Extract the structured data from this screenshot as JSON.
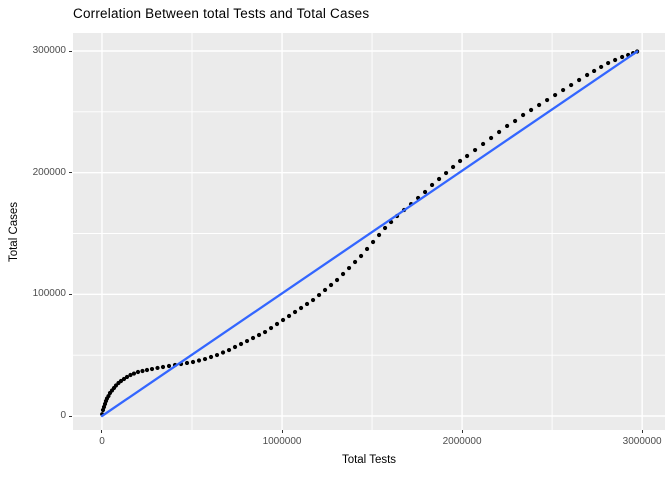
{
  "window": {
    "background": "#FFFFFF"
  },
  "chart_data": {
    "type": "scatter",
    "title": "Correlation Between total Tests and Total Cases",
    "xlabel": "Total Tests",
    "ylabel": "Total Cases",
    "panel_background": "#EBEBEB",
    "grid_color": "#FFFFFF",
    "tick_color": "#333333",
    "tick_label_color": "#4D4D4D",
    "legend": "none",
    "x_domain": [
      -161000,
      3127000
    ],
    "y_domain": [
      -11500,
      314800
    ],
    "x_ticks": {
      "values": [
        0,
        1000000,
        2000000,
        3000000
      ],
      "labels": [
        "0",
        "1000000",
        "2000000",
        "3000000"
      ]
    },
    "y_ticks": {
      "values": [
        0,
        100000,
        200000,
        300000
      ],
      "labels": [
        "0",
        "100000",
        "200000",
        "300000"
      ]
    },
    "x_minor_ticks": [
      500000,
      1500000,
      2500000
    ],
    "y_minor_ticks": [
      50000,
      150000,
      250000
    ],
    "series": [
      {
        "name": "observations",
        "geom": "point",
        "color": "#000000",
        "point_radius": 2.1,
        "points": [
          [
            1000,
            1500
          ],
          [
            5600,
            4900
          ],
          [
            11100,
            7400
          ],
          [
            16700,
            9900
          ],
          [
            22200,
            12300
          ],
          [
            27800,
            14400
          ],
          [
            36100,
            16400
          ],
          [
            44400,
            18900
          ],
          [
            55600,
            21000
          ],
          [
            66700,
            23000
          ],
          [
            77800,
            25100
          ],
          [
            91700,
            27100
          ],
          [
            105600,
            28800
          ],
          [
            122200,
            30400
          ],
          [
            138900,
            32100
          ],
          [
            158300,
            33700
          ],
          [
            177800,
            34900
          ],
          [
            200000,
            36200
          ],
          [
            225000,
            37000
          ],
          [
            250000,
            37800
          ],
          [
            277800,
            38600
          ],
          [
            308300,
            39500
          ],
          [
            338900,
            40300
          ],
          [
            372200,
            41100
          ],
          [
            405600,
            41900
          ],
          [
            438900,
            42700
          ],
          [
            472200,
            43600
          ],
          [
            505600,
            44400
          ],
          [
            538900,
            45600
          ],
          [
            572200,
            46800
          ],
          [
            605600,
            48500
          ],
          [
            638900,
            50100
          ],
          [
            672200,
            52200
          ],
          [
            705600,
            54200
          ],
          [
            738900,
            56700
          ],
          [
            772200,
            59200
          ],
          [
            805600,
            61600
          ],
          [
            838900,
            64100
          ],
          [
            872200,
            66600
          ],
          [
            905600,
            69000
          ],
          [
            938900,
            72300
          ],
          [
            972200,
            75600
          ],
          [
            1005600,
            78900
          ],
          [
            1038900,
            82200
          ],
          [
            1072200,
            85500
          ],
          [
            1105600,
            88800
          ],
          [
            1138900,
            92100
          ],
          [
            1172200,
            95300
          ],
          [
            1205600,
            99400
          ],
          [
            1238900,
            103600
          ],
          [
            1272200,
            107700
          ],
          [
            1305600,
            111800
          ],
          [
            1338900,
            116700
          ],
          [
            1372200,
            121600
          ],
          [
            1405600,
            126600
          ],
          [
            1438900,
            131500
          ],
          [
            1472200,
            137300
          ],
          [
            1505600,
            143000
          ],
          [
            1538900,
            148800
          ],
          [
            1572200,
            154500
          ],
          [
            1605600,
            159400
          ],
          [
            1638900,
            164400
          ],
          [
            1677800,
            169300
          ],
          [
            1716700,
            174200
          ],
          [
            1755600,
            179200
          ],
          [
            1794400,
            184100
          ],
          [
            1833300,
            189900
          ],
          [
            1872200,
            194800
          ],
          [
            1911100,
            199700
          ],
          [
            1950000,
            204700
          ],
          [
            1988900,
            209600
          ],
          [
            2027800,
            213700
          ],
          [
            2072200,
            218600
          ],
          [
            2116700,
            223600
          ],
          [
            2161100,
            228500
          ],
          [
            2205600,
            233400
          ],
          [
            2250000,
            238400
          ],
          [
            2294400,
            242500
          ],
          [
            2338900,
            247400
          ],
          [
            2383300,
            251500
          ],
          [
            2427800,
            255600
          ],
          [
            2472200,
            259700
          ],
          [
            2516700,
            263800
          ],
          [
            2561100,
            267900
          ],
          [
            2605600,
            272000
          ],
          [
            2650000,
            276200
          ],
          [
            2694400,
            280300
          ],
          [
            2733300,
            283600
          ],
          [
            2772200,
            286900
          ],
          [
            2811100,
            290100
          ],
          [
            2850000,
            292600
          ],
          [
            2888900,
            295100
          ],
          [
            2922200,
            296700
          ],
          [
            2950000,
            298300
          ],
          [
            2972200,
            299600
          ]
        ]
      },
      {
        "name": "fit-line",
        "geom": "line",
        "color": "#3366FF",
        "line_width": 2.3,
        "points": [
          [
            0,
            0
          ],
          [
            2972200,
            299600
          ]
        ]
      }
    ]
  }
}
